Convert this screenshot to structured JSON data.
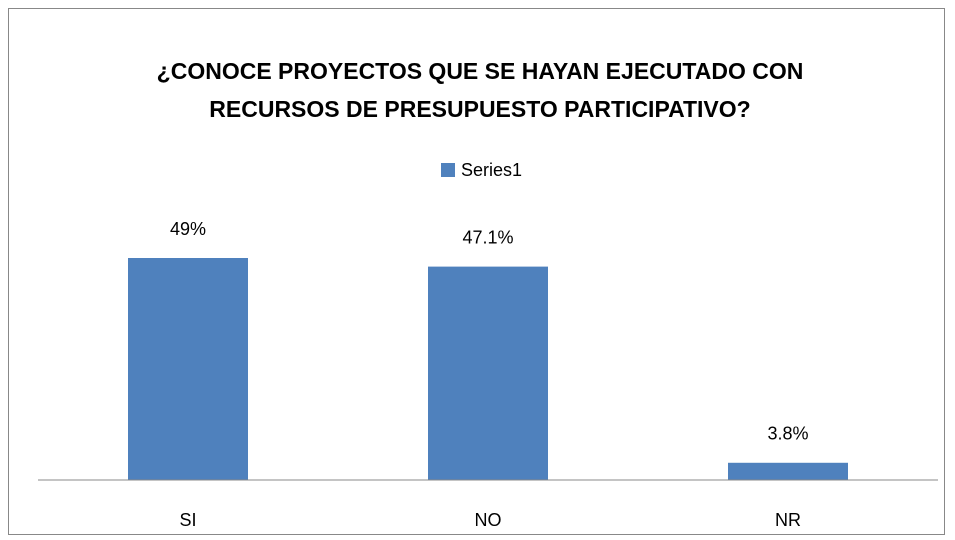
{
  "chart_data": {
    "type": "bar",
    "title": "¿CONOCE PROYECTOS QUE SE HAYAN EJECUTADO CON RECURSOS DE PRESUPUESTO PARTICIPATIVO?",
    "categories": [
      "SI",
      "NO",
      "NR"
    ],
    "series": [
      {
        "name": "Series1",
        "color": "#4f81bd",
        "values": [
          49,
          47.1,
          3.8
        ],
        "value_labels": [
          "49%",
          "47.1%",
          "3.8%"
        ]
      }
    ],
    "legend": "top"
  }
}
